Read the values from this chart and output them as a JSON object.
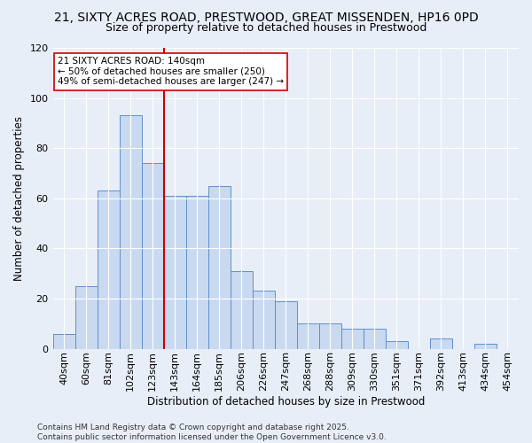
{
  "title_line1": "21, SIXTY ACRES ROAD, PRESTWOOD, GREAT MISSENDEN, HP16 0PD",
  "title_line2": "Size of property relative to detached houses in Prestwood",
  "xlabel": "Distribution of detached houses by size in Prestwood",
  "ylabel": "Number of detached properties",
  "bar_labels": [
    "40sqm",
    "60sqm",
    "81sqm",
    "102sqm",
    "123sqm",
    "143sqm",
    "164sqm",
    "185sqm",
    "206sqm",
    "226sqm",
    "247sqm",
    "268sqm",
    "288sqm",
    "309sqm",
    "330sqm",
    "351sqm",
    "371sqm",
    "392sqm",
    "413sqm",
    "434sqm",
    "454sqm"
  ],
  "bar_heights": [
    6,
    25,
    63,
    93,
    74,
    61,
    61,
    65,
    31,
    23,
    19,
    10,
    10,
    8,
    8,
    3,
    0,
    4,
    0,
    2,
    0
  ],
  "bar_color": "#c8d9f0",
  "bar_edge_color": "#6090c8",
  "vline_index": 5,
  "vline_color": "#cc0000",
  "annotation_title": "21 SIXTY ACRES ROAD: 140sqm",
  "annotation_line2": "← 50% of detached houses are smaller (250)",
  "annotation_line3": "49% of semi-detached houses are larger (247) →",
  "annotation_box_color": "#ffffff",
  "annotation_box_edge": "#cc0000",
  "ylim": [
    0,
    120
  ],
  "yticks": [
    0,
    20,
    40,
    60,
    80,
    100,
    120
  ],
  "bg_color": "#e8eef8",
  "footer_line1": "Contains HM Land Registry data © Crown copyright and database right 2025.",
  "footer_line2": "Contains public sector information licensed under the Open Government Licence v3.0.",
  "title_fontsize": 10,
  "subtitle_fontsize": 9,
  "axis_label_fontsize": 8.5,
  "tick_fontsize": 8,
  "annotation_fontsize": 7.5,
  "footer_fontsize": 6.5
}
